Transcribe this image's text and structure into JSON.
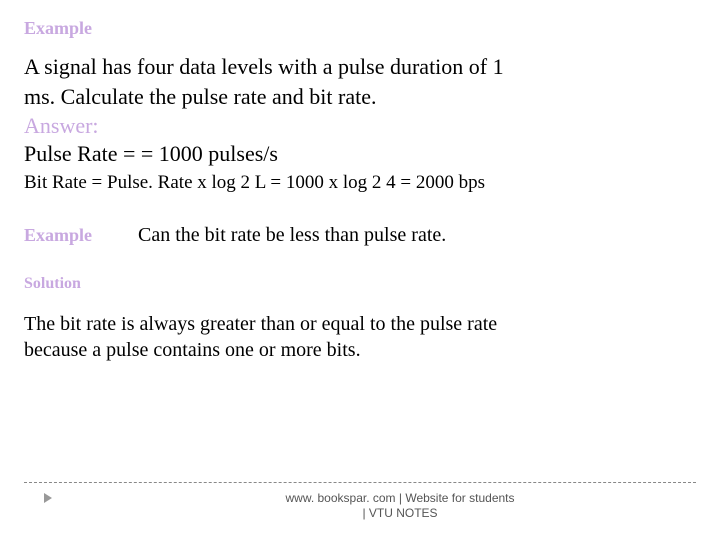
{
  "header": {
    "example_label": "Example"
  },
  "problem": {
    "line1": "A signal has four data levels with a pulse duration of 1",
    "line2": "ms. Calculate the pulse rate and bit rate.",
    "answer_label": "Answer:",
    "pulse_rate": "Pulse Rate =  = 1000 pulses/s",
    "bit_rate": "Bit Rate = Pulse. Rate x log 2 L = 1000 x log 2 4 = 2000 bps"
  },
  "example2": {
    "label": "Example",
    "question": "Can the bit rate be less than pulse rate."
  },
  "solution": {
    "label": "Solution",
    "line1": "The bit rate is always greater than or equal to the pulse rate",
    "line2": "because a pulse contains one or more bits."
  },
  "footer": {
    "line1": "www. bookspar. com | Website for students",
    "line2": "| VTU NOTES"
  },
  "colors": {
    "accent": "#c8a8e0",
    "text": "#000000",
    "footer_text": "#555555",
    "divider": "#888888",
    "marker": "#999999",
    "background": "#ffffff"
  },
  "typography": {
    "heading_fontsize": 18,
    "body_fontsize": 22,
    "bitrate_fontsize": 19,
    "question_fontsize": 20,
    "solution_fontsize": 20,
    "footer_fontsize": 12,
    "font_family_body": "Georgia, Times New Roman, serif",
    "font_family_footer": "Arial, sans-serif"
  }
}
